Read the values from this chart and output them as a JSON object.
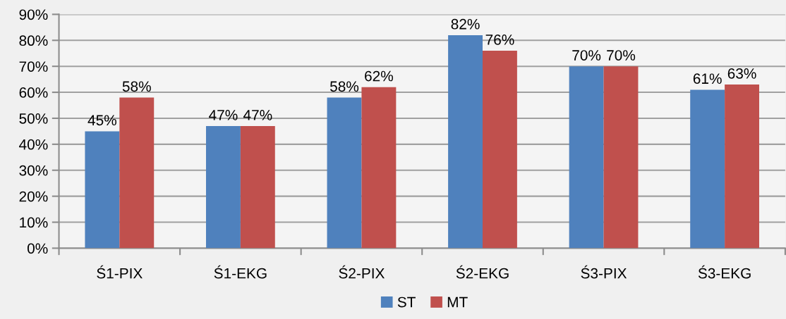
{
  "chart_data": {
    "type": "bar",
    "categories": [
      "Ś1-PIX",
      "Ś1-EKG",
      "Ś2-PIX",
      "Ś2-EKG",
      "Ś3-PIX",
      "Ś3-EKG"
    ],
    "series": [
      {
        "name": "ST",
        "color": "#4f81bd",
        "values": [
          45,
          47,
          58,
          82,
          70,
          61
        ],
        "value_labels": [
          "45%",
          "47%",
          "58%",
          "82%",
          "70%",
          "61%"
        ]
      },
      {
        "name": "MT",
        "color": "#c0504d",
        "values": [
          58,
          47,
          62,
          76,
          70,
          63
        ],
        "value_labels": [
          "58%",
          "47%",
          "62%",
          "76%",
          "70%",
          "63%"
        ]
      }
    ],
    "ylim": [
      0,
      90
    ],
    "yticks": [
      {
        "value": 0,
        "label": "0%"
      },
      {
        "value": 10,
        "label": "10%"
      },
      {
        "value": 20,
        "label": "20%"
      },
      {
        "value": 30,
        "label": "30%"
      },
      {
        "value": 40,
        "label": "40%"
      },
      {
        "value": 50,
        "label": "50%"
      },
      {
        "value": 60,
        "label": "60%"
      },
      {
        "value": 70,
        "label": "70%"
      },
      {
        "value": 80,
        "label": "80%"
      },
      {
        "value": 90,
        "label": "90%"
      }
    ],
    "grid": "y",
    "legend": "bottom"
  }
}
